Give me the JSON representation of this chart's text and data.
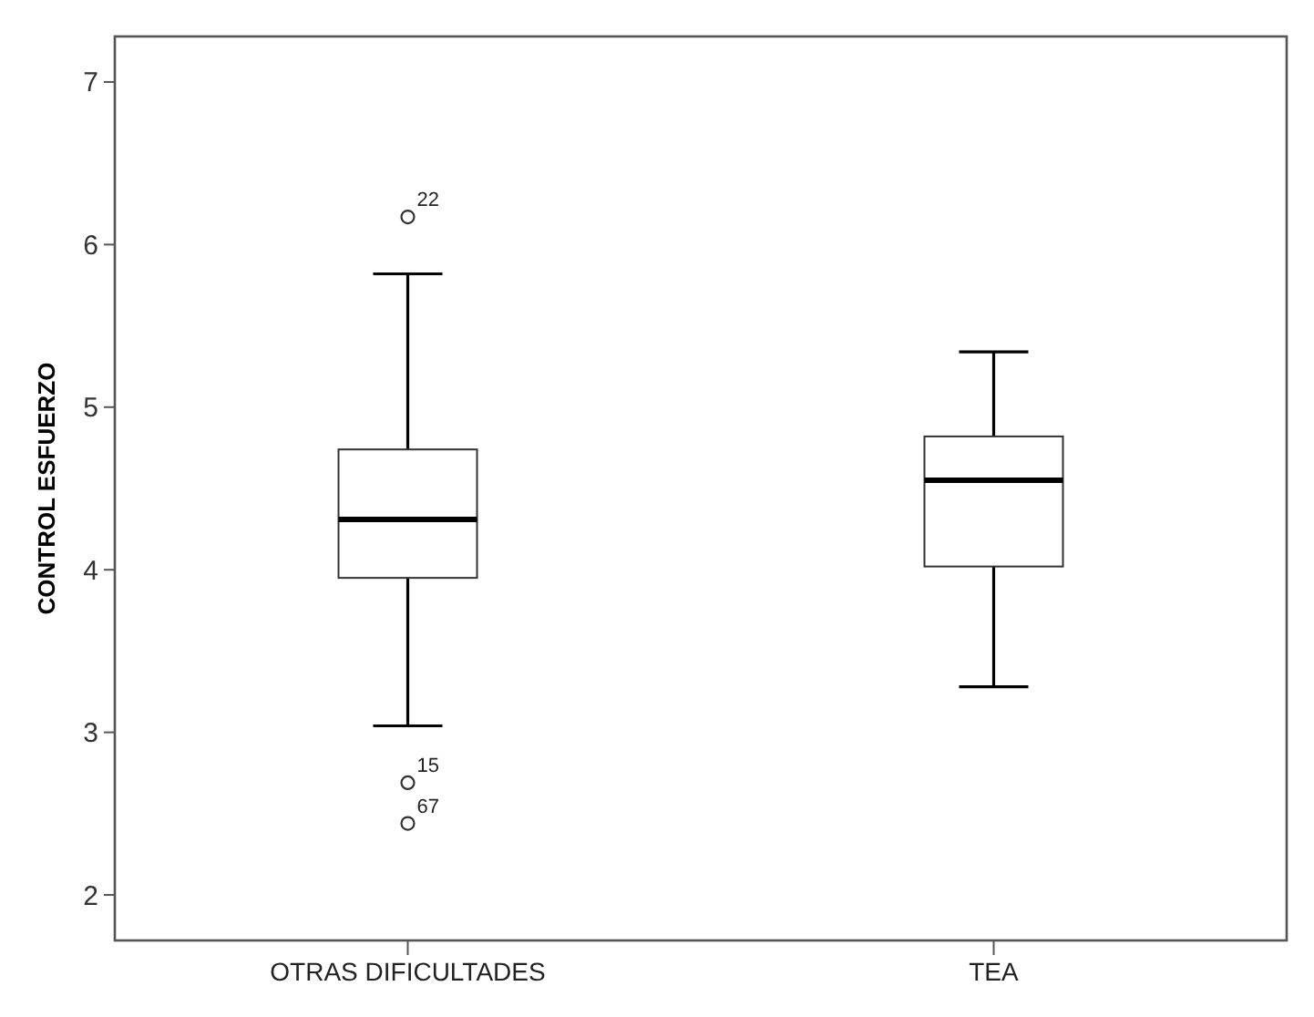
{
  "chart_data": {
    "type": "box",
    "ylabel": "CONTROL ESFUERZO",
    "categories": [
      "OTRAS DIFICULTADES",
      "TEA"
    ],
    "boxes": [
      {
        "low": 3.04,
        "q1": 3.95,
        "median": 4.31,
        "q3": 4.74,
        "high": 5.82,
        "outliers": [
          6.17,
          2.69,
          2.44
        ]
      },
      {
        "low": 3.28,
        "q1": 4.02,
        "median": 4.55,
        "q3": 4.82,
        "high": 5.34
      }
    ],
    "ylim": [
      1.72,
      7.28
    ],
    "yticks": [
      2,
      3,
      4,
      5,
      6,
      7
    ],
    "annotations": [
      "22",
      "15",
      "67"
    ]
  }
}
